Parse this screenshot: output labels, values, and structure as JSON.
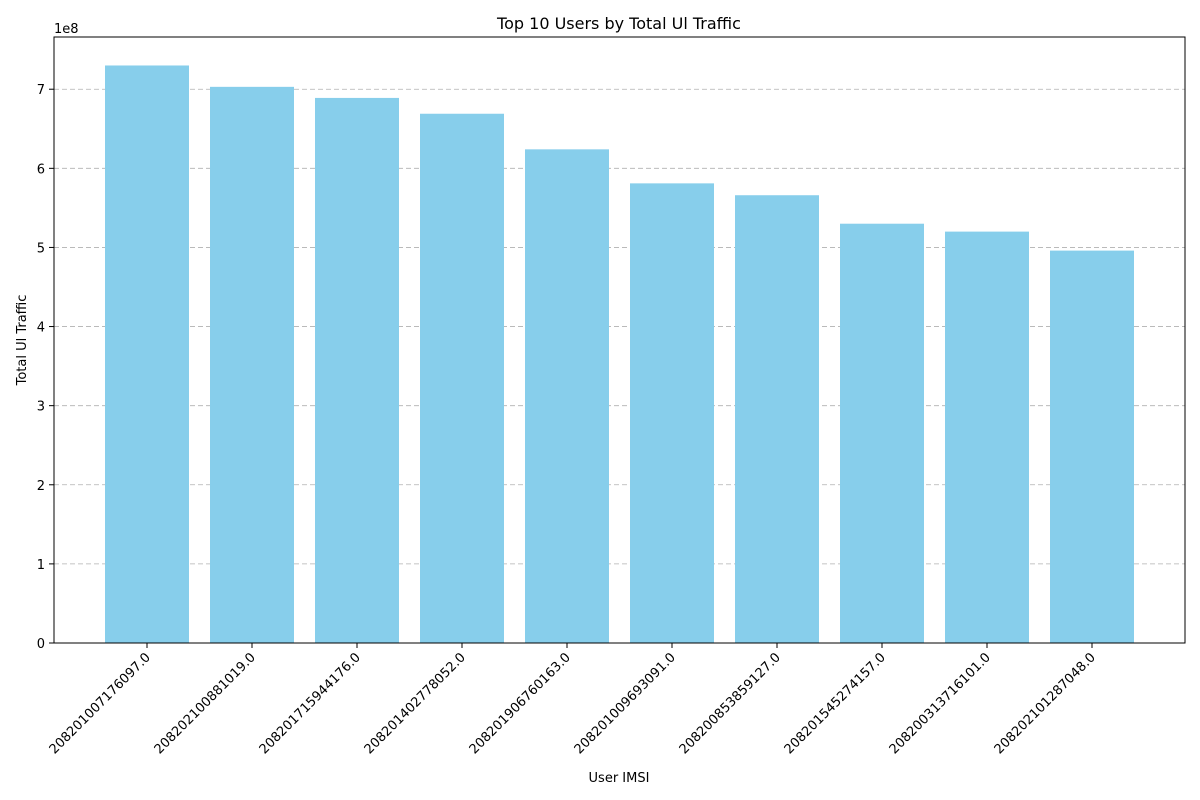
{
  "chart_data": {
    "type": "bar",
    "title": "Top 10 Users by Total Ul Traffic",
    "xlabel": "User IMSI",
    "ylabel": "Total Ul Traffic",
    "y_offset_label": "1e8",
    "categories": [
      "208201007176097.0",
      "208202100881019.0",
      "208201715944176.0",
      "208201402778052.0",
      "208201906760163.0",
      "208201009693091.0",
      "208200853859127.0",
      "208201545274157.0",
      "208200313716101.0",
      "208202101287048.0"
    ],
    "values": [
      730000000,
      703000000,
      689000000,
      669000000,
      624000000,
      581000000,
      566000000,
      530000000,
      520000000,
      496000000
    ],
    "ylim": [
      0,
      766000000
    ],
    "yticks": [
      0,
      1,
      2,
      3,
      4,
      5,
      6,
      7
    ],
    "grid": true,
    "bar_color": "#87ceeb"
  }
}
